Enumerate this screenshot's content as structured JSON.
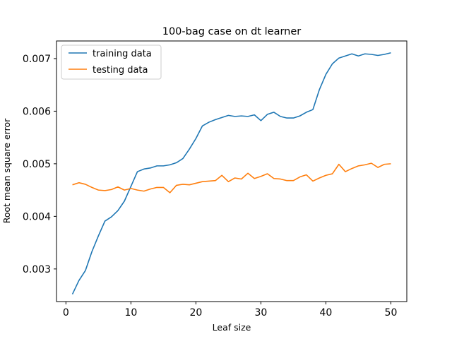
{
  "chart_data": {
    "type": "line",
    "title": "100-bag case on dt learner",
    "xlabel": "Leaf size",
    "ylabel": "Root mean square error",
    "xlim": [
      -1.45,
      52.45
    ],
    "ylim": [
      0.00238,
      0.007335
    ],
    "xticks": [
      0,
      10,
      20,
      30,
      40,
      50
    ],
    "yticks": [
      0.003,
      0.004,
      0.005,
      0.006,
      0.007
    ],
    "ytick_labels": [
      "0.003",
      "0.004",
      "0.005",
      "0.006",
      "0.007"
    ],
    "grid": false,
    "legend_position": "top-left",
    "x": [
      1,
      2,
      3,
      4,
      5,
      6,
      7,
      8,
      9,
      10,
      11,
      12,
      13,
      14,
      15,
      16,
      17,
      18,
      19,
      20,
      21,
      22,
      23,
      24,
      25,
      26,
      27,
      28,
      29,
      30,
      31,
      32,
      33,
      34,
      35,
      36,
      37,
      38,
      39,
      40,
      41,
      42,
      43,
      44,
      45,
      46,
      47,
      48,
      49,
      50
    ],
    "series": [
      {
        "name": "training data",
        "color": "#1f77b4",
        "values": [
          0.00252,
          0.00278,
          0.00297,
          0.00333,
          0.00363,
          0.00391,
          0.00399,
          0.00411,
          0.00429,
          0.00457,
          0.00485,
          0.0049,
          0.00492,
          0.00496,
          0.00496,
          0.00498,
          0.00502,
          0.0051,
          0.00528,
          0.00548,
          0.00572,
          0.00579,
          0.00584,
          0.00588,
          0.00592,
          0.0059,
          0.00591,
          0.0059,
          0.00593,
          0.00582,
          0.00594,
          0.00598,
          0.0059,
          0.00587,
          0.00587,
          0.00591,
          0.00598,
          0.00603,
          0.00641,
          0.0067,
          0.0069,
          0.00701,
          0.00705,
          0.00709,
          0.00705,
          0.00709,
          0.00708,
          0.00706,
          0.00708,
          0.00711
        ]
      },
      {
        "name": "testing data",
        "color": "#ff7f0e",
        "values": [
          0.0046,
          0.00464,
          0.00461,
          0.00455,
          0.0045,
          0.00449,
          0.00451,
          0.00456,
          0.0045,
          0.00453,
          0.0045,
          0.00448,
          0.00452,
          0.00455,
          0.00455,
          0.00445,
          0.00459,
          0.00461,
          0.0046,
          0.00463,
          0.00466,
          0.00467,
          0.00468,
          0.00478,
          0.00466,
          0.00473,
          0.00471,
          0.00482,
          0.00472,
          0.00476,
          0.00481,
          0.00472,
          0.00471,
          0.00468,
          0.00468,
          0.00475,
          0.00479,
          0.00467,
          0.00473,
          0.00478,
          0.00481,
          0.00499,
          0.00485,
          0.00491,
          0.00496,
          0.00498,
          0.00501,
          0.00493,
          0.00499,
          0.005
        ]
      }
    ]
  }
}
